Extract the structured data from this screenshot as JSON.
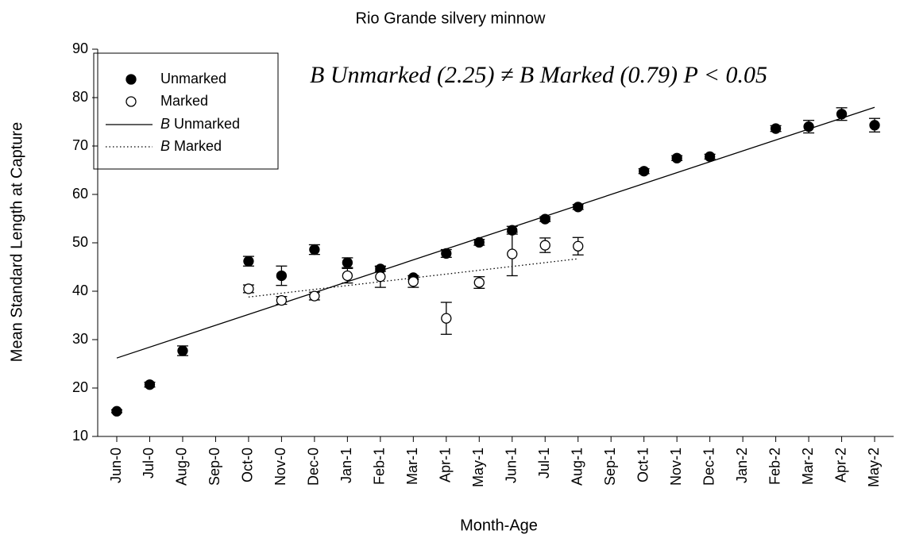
{
  "chart_data": {
    "type": "scatter",
    "title": "Rio Grande silvery minnow",
    "x_label": "Month-Age",
    "y_label": "Mean Standard Length at Capture",
    "annotation": "B Unmarked (2.25) ≠ B Marked (0.79) P < 0.05",
    "categories": [
      "Jun-0",
      "Jul-0",
      "Aug-0",
      "Sep-0",
      "Oct-0",
      "Nov-0",
      "Dec-0",
      "Jan-1",
      "Feb-1",
      "Mar-1",
      "Apr-1",
      "May-1",
      "Jun-1",
      "Jul-1",
      "Aug-1",
      "Sep-1",
      "Oct-1",
      "Nov-1",
      "Dec-1",
      "Jan-2",
      "Feb-2",
      "Mar-2",
      "Apr-2",
      "May-2"
    ],
    "series": [
      {
        "name": "Unmarked",
        "color": "#000000",
        "filled": true,
        "values": [
          15.2,
          20.7,
          27.7,
          null,
          46.2,
          43.2,
          48.6,
          45.9,
          44.6,
          42.8,
          47.8,
          50.1,
          52.6,
          54.9,
          57.4,
          null,
          64.8,
          67.5,
          67.8,
          null,
          73.6,
          74.0,
          76.6,
          74.3
        ],
        "errors": [
          0.3,
          0.5,
          1.0,
          null,
          1.0,
          2.0,
          1.0,
          1.0,
          0.5,
          0.4,
          0.8,
          0.6,
          0.8,
          0.5,
          0.5,
          null,
          0.5,
          0.5,
          0.5,
          null,
          0.6,
          1.3,
          1.3,
          1.4
        ]
      },
      {
        "name": "Marked",
        "color": "#000000",
        "filled": false,
        "values": [
          null,
          null,
          null,
          null,
          40.5,
          38.1,
          39.0,
          43.2,
          43.0,
          42.0,
          34.4,
          41.8,
          47.7,
          49.5,
          49.3,
          null,
          null,
          null,
          null,
          null,
          null,
          null,
          null,
          null
        ],
        "errors": [
          null,
          null,
          null,
          null,
          0.8,
          0.8,
          0.8,
          1.5,
          2.2,
          1.2,
          3.3,
          1.2,
          4.5,
          1.5,
          1.8,
          null,
          null,
          null,
          null,
          null,
          null,
          null,
          null,
          null
        ]
      }
    ],
    "trend_lines": [
      {
        "name": "B Unmarked",
        "style": "solid",
        "x": [
          "Jun-0",
          "May-2"
        ],
        "values": [
          26.2,
          78.0
        ]
      },
      {
        "name": "B Marked",
        "style": "dotted",
        "x": [
          "Oct-0",
          "Aug-1"
        ],
        "values": [
          38.8,
          46.7
        ]
      }
    ],
    "ylim": [
      10,
      90
    ],
    "yticks": [
      10,
      20,
      30,
      40,
      50,
      60,
      70,
      80,
      90
    ]
  }
}
